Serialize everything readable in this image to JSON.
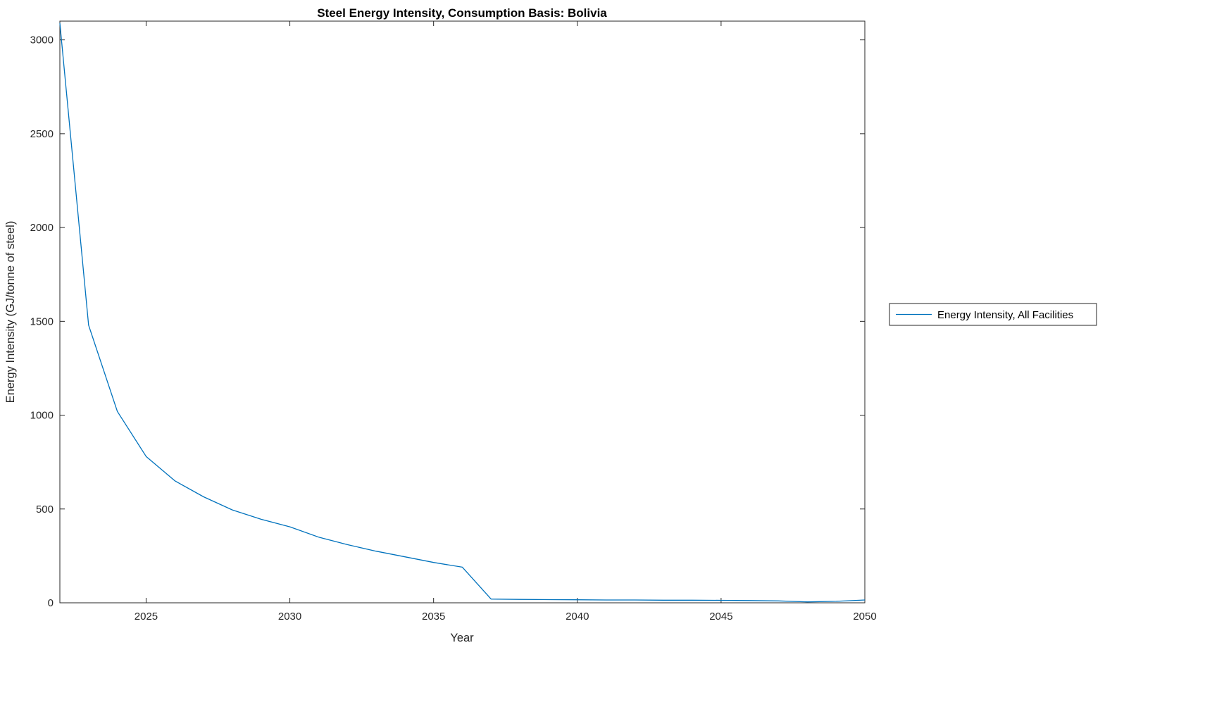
{
  "colors": {
    "series_blue": "#0072BD",
    "axis": "#262626",
    "background": "#ffffff"
  },
  "chart_data": {
    "type": "line",
    "title": "Steel Energy Intensity, Consumption Basis: Bolivia",
    "xlabel": "Year",
    "ylabel": "Energy Intensity (GJ/tonne of steel)",
    "xlim": [
      2022,
      2050
    ],
    "ylim": [
      0,
      3100
    ],
    "xticks": [
      2025,
      2030,
      2035,
      2040,
      2045,
      2050
    ],
    "yticks": [
      0,
      500,
      1000,
      1500,
      2000,
      2500,
      3000
    ],
    "grid": false,
    "legend_position": "right-outside",
    "x": [
      2022,
      2023,
      2024,
      2025,
      2026,
      2027,
      2028,
      2029,
      2030,
      2031,
      2032,
      2033,
      2034,
      2035,
      2036,
      2037,
      2038,
      2039,
      2040,
      2041,
      2042,
      2043,
      2044,
      2045,
      2046,
      2047,
      2048,
      2049,
      2050
    ],
    "series": [
      {
        "name": "Energy Intensity, All Facilities",
        "color": "#0072BD",
        "values": [
          3090,
          1480,
          1020,
          780,
          650,
          565,
          495,
          445,
          405,
          350,
          310,
          275,
          245,
          215,
          190,
          20,
          18,
          17,
          16,
          15,
          15,
          14,
          14,
          13,
          12,
          10,
          5,
          8,
          15
        ]
      }
    ]
  }
}
